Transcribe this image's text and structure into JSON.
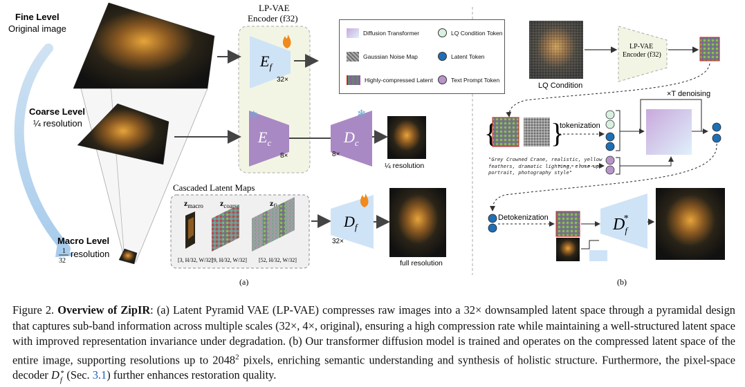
{
  "left_panel": {
    "fine_level_title": "Fine Level",
    "fine_level_sub": "Original image",
    "coarse_level_title": "Coarse Level",
    "coarse_level_sub": "¼ resolution",
    "macro_level_title": "Macro Level",
    "macro_frac_num": "1",
    "macro_frac_den": "32",
    "macro_level_sub": "resolution",
    "encoder_title_line1": "LP-VAE",
    "encoder_title_line2": "Encoder (f32)",
    "ef_symbol": "E",
    "ef_sub": "f",
    "ef_factor": "32×",
    "ec_symbol": "E",
    "ec_sub": "c",
    "ec_factor": "8×",
    "dc_symbol": "D",
    "dc_sub": "c",
    "dc_factor": "8×",
    "dc_output_label": "¼ resolution",
    "cascaded_title": "Cascaded Latent Maps",
    "z_macro": "z",
    "z_macro_sub": "macro",
    "z_coarse": "z",
    "z_coarse_sub": "coarse",
    "z_fine": "z",
    "z_fine_sub": "fine",
    "z_macro_dim": "[3, H/32, W/32]",
    "z_coarse_dim": "[9, H/32, W/32]",
    "z_fine_dim": "[52, H/32, W/32]",
    "df_symbol": "D",
    "df_sub": "f",
    "df_factor": "32×",
    "df_output_label": "full resolution",
    "panel_label": "(a)"
  },
  "legend": {
    "items": [
      {
        "label": "Diffusion Transformer",
        "color": "#c9a8dc"
      },
      {
        "label": "LQ Condition Token",
        "color": "#d8f0e0"
      },
      {
        "label": "Gaussian Noise Map",
        "color": "#8a8a8a"
      },
      {
        "label": "Latent Token",
        "color": "#1f6fb5"
      },
      {
        "label": "Highly-compressed Latent",
        "color": "#4a7a5a"
      },
      {
        "label": "Text Prompt Token",
        "color": "#b795c8"
      }
    ]
  },
  "right_panel": {
    "lq_condition_label": "LQ Condition",
    "encoder_line1": "LP-VAE",
    "encoder_line2": "Encoder (f32)",
    "denoising_label": "×T denoising",
    "tokenization_label": "tokenization",
    "prompt_text": "\"Grey Crowned Crane, realistic, yellow feathers, dramatic lighting, close-up portrait, photography style\"",
    "detokenization_label": "Detokenization",
    "df_star_symbol": "D",
    "df_star_sub": "f",
    "df_star_sup": "*",
    "panel_label": "(b)"
  },
  "caption": {
    "prefix": "Figure 2.",
    "bold_title": "Overview of ZipIR",
    "text_a": ": (a) Latent Pyramid VAE (LP-VAE) compresses raw images into a 32× downsampled latent space through a pyramidal design that captures sub-band information across multiple scales (32×, 4×, original), ensuring a high compression rate while maintaining a well-structured latent space with improved representation invariance under degradation. (b) Our transformer diffusion model is trained and operates on the compressed latent space of the entire image, supporting resolutions up to 2048",
    "sup": "2",
    "text_b": " pixels, enriching semantic understanding and synthesis of holistic structure. Furthermore, the pixel-space decoder ",
    "math_d": "D",
    "math_sup": "*",
    "math_sub": "f",
    "text_c": " (Sec. ",
    "sec_ref": "3.1",
    "text_d": ") further enhances restoration quality."
  },
  "colors": {
    "encoder_blue": "#cfe3f7",
    "encoder_purple": "#a989c4",
    "encoder_panel_fill": "#f3f5e4",
    "dashed_gray": "#888888",
    "sec_ref_blue": "#1f5fb8",
    "latent_token_blue": "#1f6fb5"
  }
}
